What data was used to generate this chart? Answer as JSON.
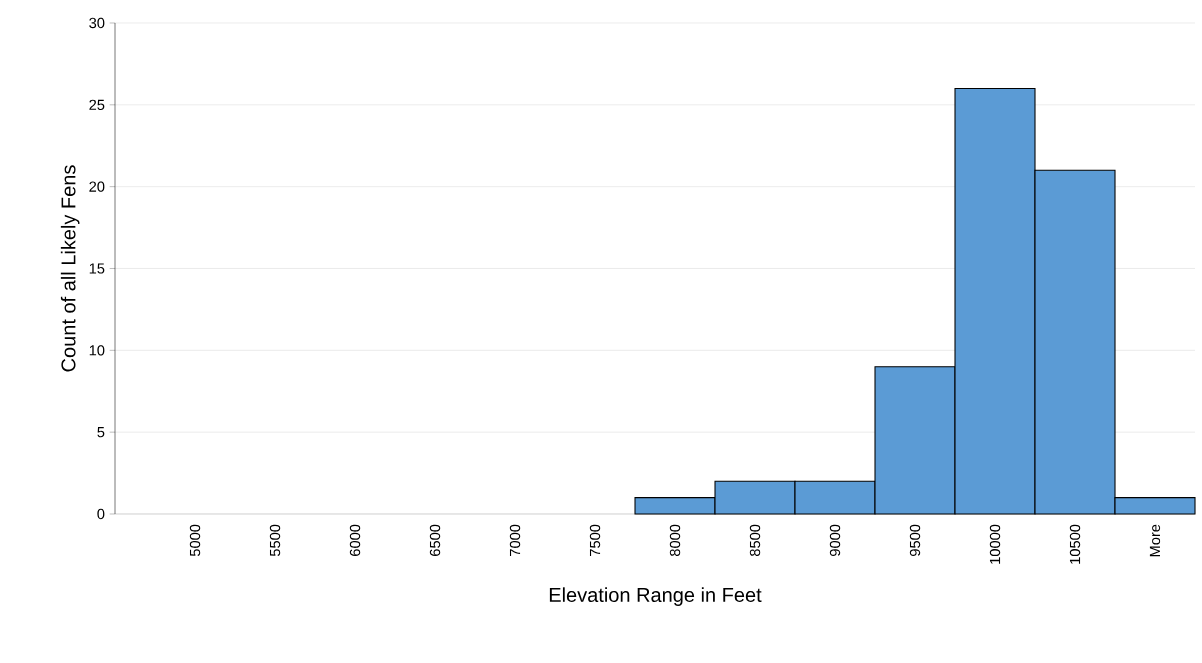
{
  "chart_data": {
    "type": "bar",
    "xlabel": "Elevation Range in Feet",
    "ylabel": "Count of all Likely Fens",
    "categories": [
      "5000",
      "5500",
      "6000",
      "6500",
      "7000",
      "7500",
      "8000",
      "8500",
      "9000",
      "9500",
      "10000",
      "10500",
      "More"
    ],
    "values": [
      0,
      0,
      0,
      0,
      0,
      0,
      1,
      2,
      2,
      9,
      26,
      21,
      1
    ],
    "color": "#5b9bd5",
    "ylim": [
      0,
      30
    ],
    "yticks": [
      0,
      5,
      10,
      15,
      20,
      25,
      30
    ],
    "grid": "y"
  }
}
